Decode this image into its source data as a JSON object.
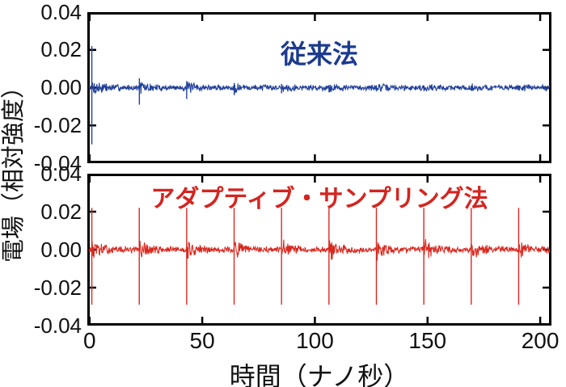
{
  "figure": {
    "background": "#ffffff",
    "axis_color": "#000000",
    "x_axis_title": "時間（ナノ秒）",
    "y_axis_title": "電場（相対強度）"
  },
  "chart_data": [
    {
      "type": "line",
      "panel": "top",
      "title": "従来法",
      "color": "#21409b",
      "title_color": "#1c3a8e",
      "x_range": [
        -1,
        205
      ],
      "y_range": [
        -0.04,
        0.04
      ],
      "x_ticks": [
        0,
        50,
        100,
        150,
        200
      ],
      "x_tick_labels": [
        "0",
        "50",
        "100",
        "150",
        "200"
      ],
      "show_x_tick_labels": false,
      "y_ticks": [
        0.04,
        0.02,
        0,
        -0.02,
        -0.04
      ],
      "y_tick_labels": [
        "0.04",
        "0.02",
        "0.00",
        "-0.02",
        "-0.04"
      ],
      "grid": false,
      "legend": "none",
      "baseline": 0,
      "noise_amplitude": 0.0012,
      "pulse_period_ns": 21.1,
      "pulses": [
        {
          "t": 1.0,
          "peak": 0.022,
          "trough": -0.03,
          "tail": 0.004
        },
        {
          "t": 22.1,
          "peak": 0.005,
          "trough": -0.009,
          "tail": 0.0022
        },
        {
          "t": 43.1,
          "peak": 0.0035,
          "trough": -0.006,
          "tail": 0.0016
        },
        {
          "t": 64.2,
          "peak": 0.0025,
          "trough": -0.004,
          "tail": 0.0013
        },
        {
          "t": 85.2,
          "peak": 0.002,
          "trough": -0.003,
          "tail": 0.0011
        },
        {
          "t": 106.3,
          "peak": 0.0015,
          "trough": -0.0025,
          "tail": 0.001
        },
        {
          "t": 127.3,
          "peak": 0.0013,
          "trough": -0.002,
          "tail": 0.0009
        },
        {
          "t": 148.4,
          "peak": 0.0012,
          "trough": -0.0018,
          "tail": 0.0008
        },
        {
          "t": 169.4,
          "peak": 0.001,
          "trough": -0.0016,
          "tail": 0.0008
        },
        {
          "t": 190.5,
          "peak": 0.001,
          "trough": -0.0015,
          "tail": 0.0007
        }
      ]
    },
    {
      "type": "line",
      "panel": "bottom",
      "title": "アダプティブ・サンプリング法",
      "color": "#d9281f",
      "title_color": "#d42520",
      "x_range": [
        -1,
        205
      ],
      "y_range": [
        -0.04,
        0.04
      ],
      "x_ticks": [
        0,
        50,
        100,
        150,
        200
      ],
      "x_tick_labels": [
        "0",
        "50",
        "100",
        "150",
        "200"
      ],
      "show_x_tick_labels": true,
      "y_ticks": [
        0.04,
        0.02,
        0,
        -0.02,
        -0.04
      ],
      "y_tick_labels": [
        "0.04",
        "0.02",
        "0.00",
        "-0.02",
        "-0.04"
      ],
      "grid": false,
      "legend": "none",
      "baseline": 0,
      "noise_amplitude": 0.0012,
      "pulse_period_ns": 21.05,
      "pulses": [
        {
          "t": 1.0,
          "peak": 0.022,
          "trough": -0.029,
          "tail": 0.0038
        },
        {
          "t": 22.05,
          "peak": 0.022,
          "trough": -0.029,
          "tail": 0.0038
        },
        {
          "t": 43.1,
          "peak": 0.022,
          "trough": -0.029,
          "tail": 0.0038
        },
        {
          "t": 64.15,
          "peak": 0.022,
          "trough": -0.029,
          "tail": 0.0038
        },
        {
          "t": 85.2,
          "peak": 0.022,
          "trough": -0.029,
          "tail": 0.0038
        },
        {
          "t": 106.25,
          "peak": 0.022,
          "trough": -0.029,
          "tail": 0.0038
        },
        {
          "t": 127.3,
          "peak": 0.022,
          "trough": -0.029,
          "tail": 0.0038
        },
        {
          "t": 148.35,
          "peak": 0.022,
          "trough": -0.029,
          "tail": 0.0038
        },
        {
          "t": 169.4,
          "peak": 0.022,
          "trough": -0.029,
          "tail": 0.0038
        },
        {
          "t": 190.45,
          "peak": 0.022,
          "trough": -0.029,
          "tail": 0.0038
        }
      ]
    }
  ]
}
